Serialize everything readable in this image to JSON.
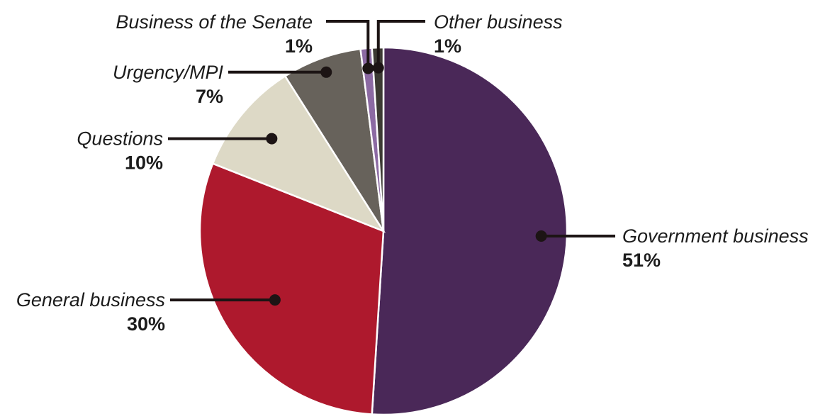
{
  "chart_data": {
    "type": "pie",
    "title": "",
    "slices": [
      {
        "label": "Government business",
        "value": 51,
        "value_label": "51%",
        "color": "#4a2858"
      },
      {
        "label": "General business",
        "value": 30,
        "value_label": "30%",
        "color": "#ae192d"
      },
      {
        "label": "Questions",
        "value": 10,
        "value_label": "10%",
        "color": "#ddd9c6"
      },
      {
        "label": "Urgency/MPI",
        "value": 7,
        "value_label": "7%",
        "color": "#67625b"
      },
      {
        "label": "Business of the Senate",
        "value": 1,
        "value_label": "1%",
        "color": "#8c6aa3"
      },
      {
        "label": "Other business",
        "value": 1,
        "value_label": "1%",
        "color": "#3c3a33"
      }
    ],
    "legend": "none (direct labels with leader lines)"
  }
}
